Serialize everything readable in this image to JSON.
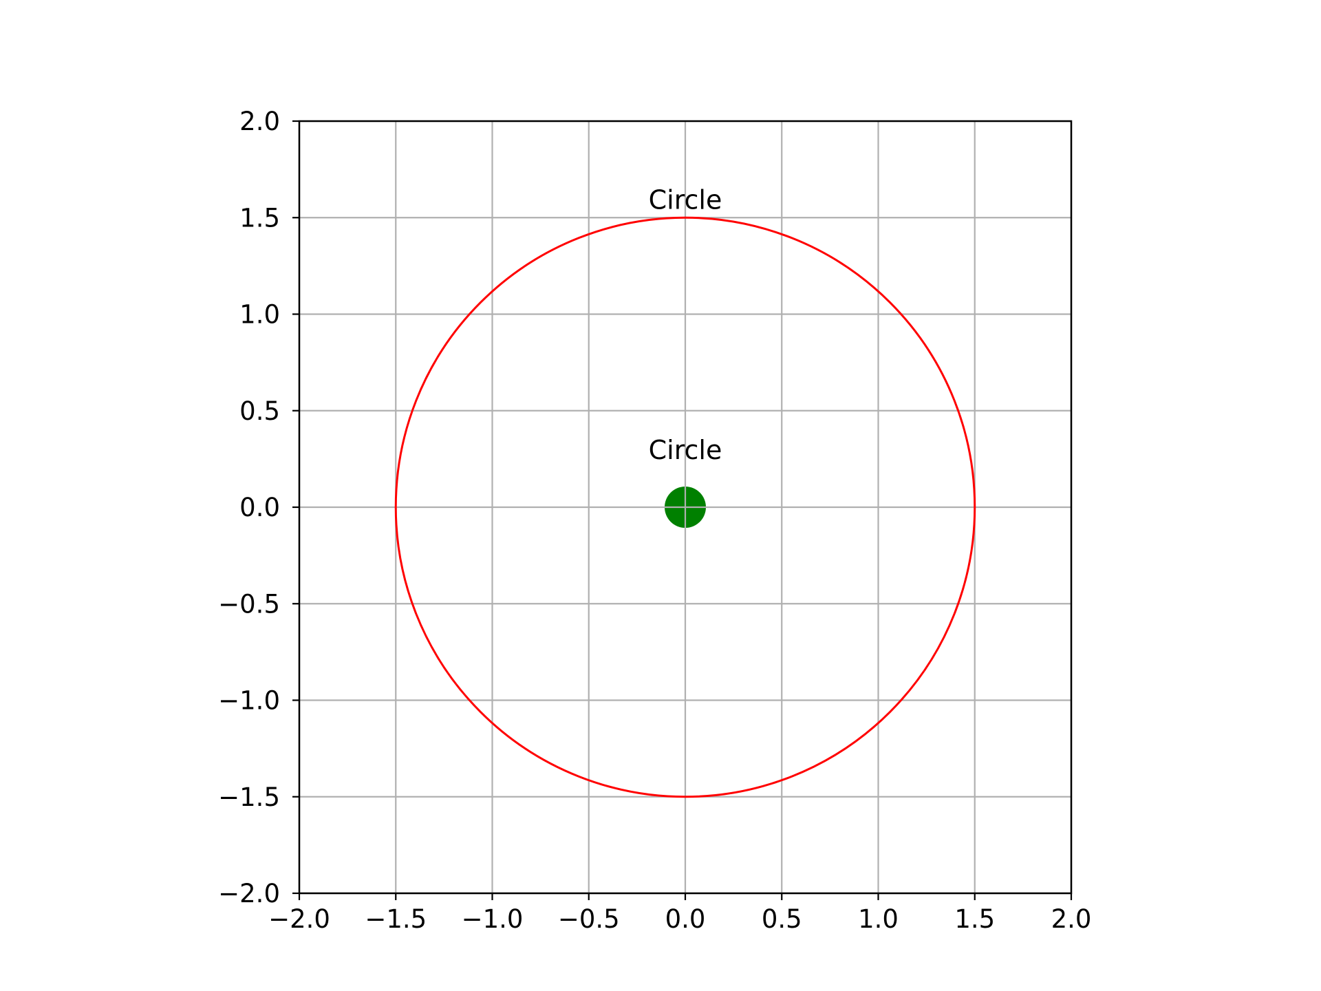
{
  "chart_data": {
    "type": "scatter",
    "title": "",
    "xlabel": "",
    "ylabel": "",
    "xlim": [
      -2.0,
      2.0
    ],
    "ylim": [
      -2.0,
      2.0
    ],
    "grid": true,
    "x_ticks": [
      "−2.0",
      "−1.5",
      "−1.0",
      "−0.5",
      "0.0",
      "0.5",
      "1.0",
      "1.5",
      "2.0"
    ],
    "y_ticks": [
      "−2.0",
      "−1.5",
      "−1.0",
      "−0.5",
      "0.0",
      "0.5",
      "1.0",
      "1.5",
      "2.0"
    ],
    "tick_values": [
      -2.0,
      -1.5,
      -1.0,
      -0.5,
      0.0,
      0.5,
      1.0,
      1.5,
      2.0
    ],
    "shapes": [
      {
        "kind": "circle",
        "center": [
          0.0,
          0.0
        ],
        "radius": 1.5,
        "color": "#ff0000",
        "fill": "none"
      }
    ],
    "points": [
      {
        "x": 0.0,
        "y": 0.0,
        "color": "#008000"
      }
    ],
    "annotations": [
      {
        "text": "Circle",
        "x": 0.0,
        "y": 1.5
      },
      {
        "text": "Circle",
        "x": 0.0,
        "y": 0.0
      }
    ],
    "colors": {
      "grid": "#b0b0b0",
      "axes": "#000000"
    }
  }
}
